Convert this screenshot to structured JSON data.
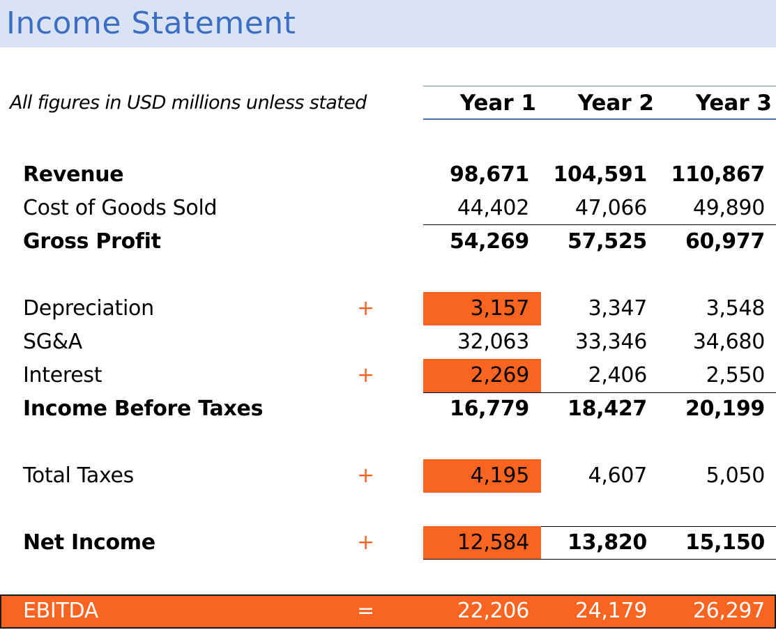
{
  "title": "Income Statement",
  "subtitle": "All figures in USD millions unless stated",
  "columns": [
    "Year 1",
    "Year 2",
    "Year 3"
  ],
  "rows": {
    "revenue": {
      "label": "Revenue",
      "values": [
        "98,671",
        "104,591",
        "110,867"
      ]
    },
    "cogs": {
      "label": "Cost of Goods Sold",
      "values": [
        "44,402",
        "47,066",
        "49,890"
      ]
    },
    "gross_profit": {
      "label": "Gross Profit",
      "values": [
        "54,269",
        "57,525",
        "60,977"
      ]
    },
    "depreciation": {
      "label": "Depreciation",
      "op": "+",
      "values": [
        "3,157",
        "3,347",
        "3,548"
      ]
    },
    "sga": {
      "label": "SG&A",
      "values": [
        "32,063",
        "33,346",
        "34,680"
      ]
    },
    "interest": {
      "label": "Interest",
      "op": "+",
      "values": [
        "2,269",
        "2,406",
        "2,550"
      ]
    },
    "ibt": {
      "label": "Income Before Taxes",
      "values": [
        "16,779",
        "18,427",
        "20,199"
      ]
    },
    "taxes": {
      "label": "Total Taxes",
      "op": "+",
      "values": [
        "4,195",
        "4,607",
        "5,050"
      ]
    },
    "net_income": {
      "label": "Net Income",
      "op": "+",
      "values": [
        "12,584",
        "13,820",
        "15,150"
      ]
    },
    "ebitda": {
      "label": "EBITDA",
      "op": "=",
      "values": [
        "22,206",
        "24,179",
        "26,297"
      ]
    }
  },
  "colors": {
    "highlight": "#f96420",
    "title_bg": "#dae3f3",
    "title_text": "#3a6fc4",
    "operator": "#f26522"
  }
}
